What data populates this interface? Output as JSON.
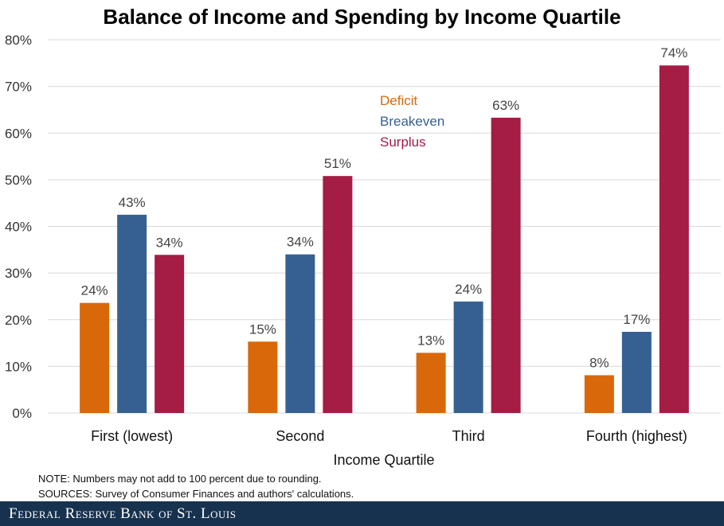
{
  "chart_data": {
    "type": "bar",
    "title": "Balance of Income and Spending by Income Quartile",
    "xlabel": "Income Quartile",
    "ylabel": "",
    "ylim": [
      0,
      80
    ],
    "yticks": [
      "0%",
      "10%",
      "20%",
      "30%",
      "40%",
      "50%",
      "60%",
      "70%",
      "80%"
    ],
    "grid": true,
    "legend_position": "top-center",
    "categories": [
      "First (lowest)",
      "Second",
      "Third",
      "Fourth (highest)"
    ],
    "series": [
      {
        "name": "Deficit",
        "color": "#d9680b",
        "values": [
          23.6,
          15.3,
          12.9,
          8.1
        ],
        "labels": [
          "24%",
          "15%",
          "13%",
          "8%"
        ]
      },
      {
        "name": "Breakeven",
        "color": "#376092",
        "values": [
          42.5,
          34.0,
          23.9,
          17.4
        ],
        "labels": [
          "43%",
          "34%",
          "24%",
          "17%"
        ]
      },
      {
        "name": "Surplus",
        "color": "#a51c45",
        "values": [
          33.9,
          50.8,
          63.3,
          74.5
        ],
        "labels": [
          "34%",
          "51%",
          "63%",
          "74%"
        ]
      }
    ]
  },
  "note": "NOTE: Numbers may not add to 100 percent due to rounding.",
  "sources": "SOURCES: Survey of Consumer Finances and authors' calculations.",
  "footer": {
    "logo_text": "Federal Reserve Bank of St. Louis",
    "background": "#17324f"
  }
}
